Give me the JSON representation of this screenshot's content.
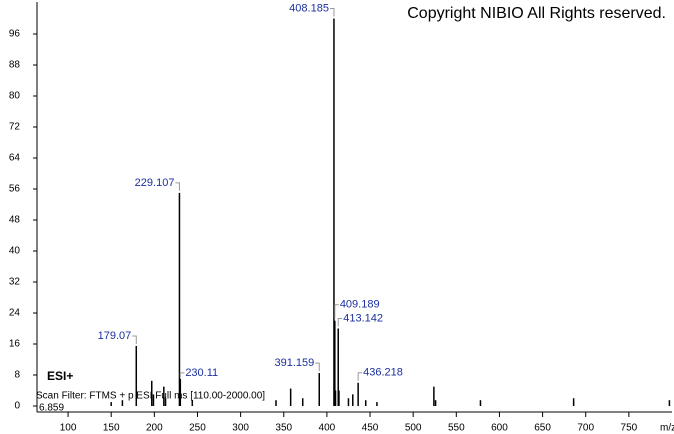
{
  "chart_data": {
    "type": "spectrum",
    "copyright": "Copyright NIBIO All Rights reserved.",
    "ionization": "ESI+",
    "scan_filter": "Scan Filter: FTMS + p ESI Full ms [110.00-2000.00]",
    "retention_time": "6.859",
    "x_label": "m/z",
    "xlim": [
      64,
      800
    ],
    "ylim": [
      0,
      104
    ],
    "xticks": [
      100,
      150,
      200,
      250,
      300,
      350,
      400,
      450,
      500,
      550,
      600,
      650,
      700,
      750
    ],
    "yticks": [
      0,
      8,
      16,
      24,
      32,
      40,
      48,
      56,
      64,
      72,
      80,
      88,
      96
    ],
    "series": [
      {
        "color": "#000000",
        "labels_shown": true,
        "x": [
          408.185,
          229.107,
          179.07,
          230.11,
          391.159,
          409.189,
          413.142,
          436.218
        ],
        "values": [
          100,
          55,
          15.5,
          7,
          8.5,
          22,
          20,
          6
        ]
      },
      {
        "color": "#000000",
        "x": [
          150,
          163,
          197,
          199,
          211,
          213,
          244,
          341,
          358,
          372,
          410,
          414,
          425,
          430,
          445,
          458,
          524,
          526,
          578,
          686,
          797
        ],
        "values": [
          1,
          1.5,
          6.5,
          3,
          5,
          2,
          1.5,
          1.5,
          4.5,
          2,
          4,
          4,
          2,
          3,
          1.5,
          1,
          5,
          1.5,
          1.5,
          2,
          1.5
        ]
      }
    ]
  }
}
